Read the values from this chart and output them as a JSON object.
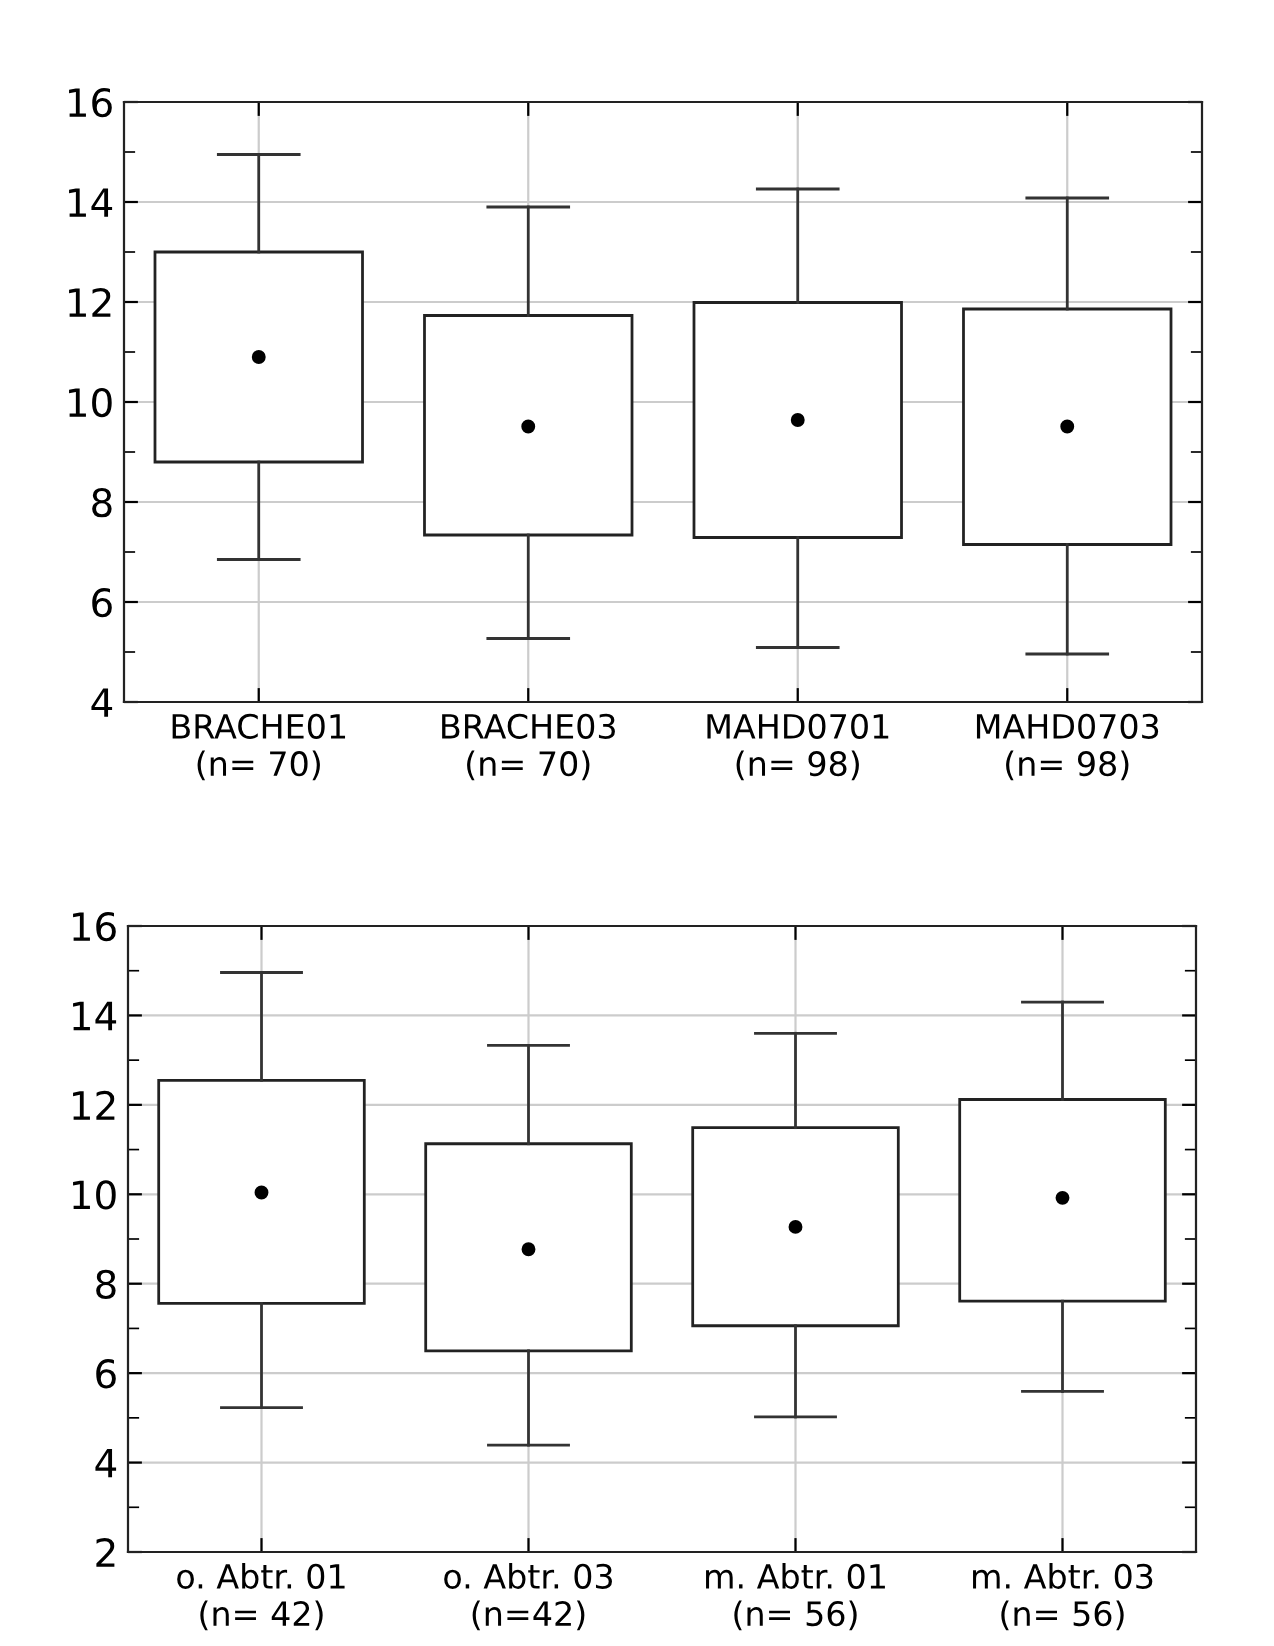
{
  "chart_data": [
    {
      "type": "box",
      "categories": [
        "BRACHE01\n(n= 70)",
        "BRACHE03\n(n= 70)",
        "MAHD0701\n(n= 98)",
        "MAHD0703\n(n= 98)"
      ],
      "ylim": [
        4,
        16
      ],
      "yticks": [
        4,
        6,
        8,
        10,
        12,
        14,
        16
      ],
      "grid": true,
      "marker": "circle",
      "boxes": [
        {
          "low": 6.85,
          "q1": 8.8,
          "median": 10.9,
          "q3": 13.0,
          "high": 14.95
        },
        {
          "low": 5.27,
          "q1": 7.34,
          "median": 9.51,
          "q3": 11.73,
          "high": 13.9
        },
        {
          "low": 5.09,
          "q1": 7.29,
          "median": 9.64,
          "q3": 11.99,
          "high": 14.26
        },
        {
          "low": 4.96,
          "q1": 7.15,
          "median": 9.51,
          "q3": 11.86,
          "high": 14.08
        }
      ]
    },
    {
      "type": "box",
      "categories": [
        "o. Abtr. 01\n(n= 42)",
        "o. Abtr. 03\n(n=42)",
        "m. Abtr. 01\n(n= 56)",
        "m. Abtr. 03\n(n= 56)"
      ],
      "ylim": [
        2,
        16
      ],
      "yticks": [
        2,
        4,
        6,
        8,
        10,
        12,
        14,
        16
      ],
      "grid": true,
      "marker": "circle",
      "boxes": [
        {
          "low": 5.23,
          "q1": 7.56,
          "median": 10.04,
          "q3": 12.55,
          "high": 14.96
        },
        {
          "low": 4.39,
          "q1": 6.5,
          "median": 8.77,
          "q3": 11.13,
          "high": 13.33
        },
        {
          "low": 5.02,
          "q1": 7.06,
          "median": 9.27,
          "q3": 11.49,
          "high": 13.6
        },
        {
          "low": 5.59,
          "q1": 7.61,
          "median": 9.92,
          "q3": 12.12,
          "high": 14.3
        }
      ]
    }
  ]
}
